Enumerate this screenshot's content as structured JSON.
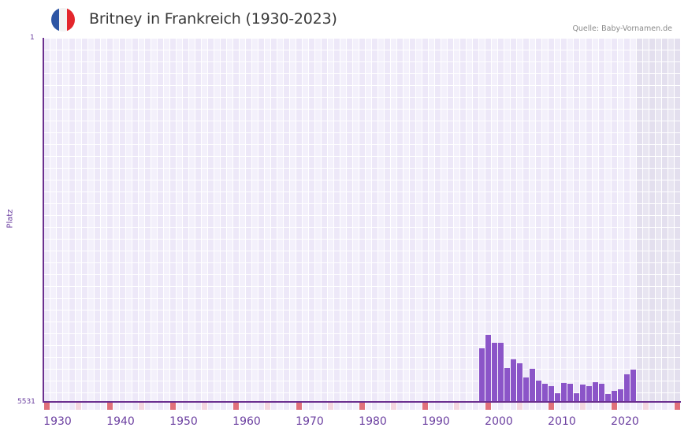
{
  "header": {
    "title": "Britney in Frankreich (1930-2023)",
    "source": "Quelle: Baby-Vornamen.de",
    "flag_icon": "france-flag-icon",
    "flag_colors": [
      "#2d55a4",
      "#f3f3f3",
      "#e3262c"
    ]
  },
  "axis": {
    "y_top_label": "1",
    "y_bottom_label": "5531",
    "y_title": "Platz",
    "x_ticks": [
      "1930",
      "1940",
      "1950",
      "1960",
      "1970",
      "1980",
      "1990",
      "2000",
      "2010",
      "2020"
    ]
  },
  "colors": {
    "bar": "#8b55c8",
    "axis": "#6b2f8f",
    "grid_a": "#ede8f8",
    "grid_b": "#f3f0fb",
    "future_a": "#e3dfee",
    "future_b": "#e8e5f1",
    "decade_marker": "#e0707a",
    "half_decade_marker": "#f4d6df",
    "text_accent": "#6b3fa0"
  },
  "chart_data": {
    "type": "bar",
    "title": "Britney in Frankreich (1930-2023)",
    "xlabel": "",
    "ylabel": "Platz",
    "y_inverted": true,
    "ylim": [
      5531,
      1
    ],
    "xlim": [
      1930,
      2030
    ],
    "grid": true,
    "source": "Quelle: Baby-Vornamen.de",
    "categories": [
      1999,
      2000,
      2001,
      2002,
      2003,
      2004,
      2005,
      2006,
      2007,
      2008,
      2009,
      2010,
      2011,
      2012,
      2013,
      2014,
      2015,
      2016,
      2017,
      2018,
      2019,
      2020,
      2021,
      2022,
      2023
    ],
    "values": [
      4717,
      4514,
      4634,
      4634,
      5017,
      4886,
      4945,
      5161,
      5029,
      5209,
      5257,
      5292,
      5400,
      5245,
      5257,
      5400,
      5269,
      5292,
      5233,
      5257,
      5412,
      5364,
      5340,
      5113,
      5041
    ],
    "x_tick_labels": [
      "1930",
      "1940",
      "1950",
      "1960",
      "1970",
      "1980",
      "1990",
      "2000",
      "2010",
      "2020"
    ],
    "y_tick_labels": [
      "1",
      "5531"
    ]
  }
}
